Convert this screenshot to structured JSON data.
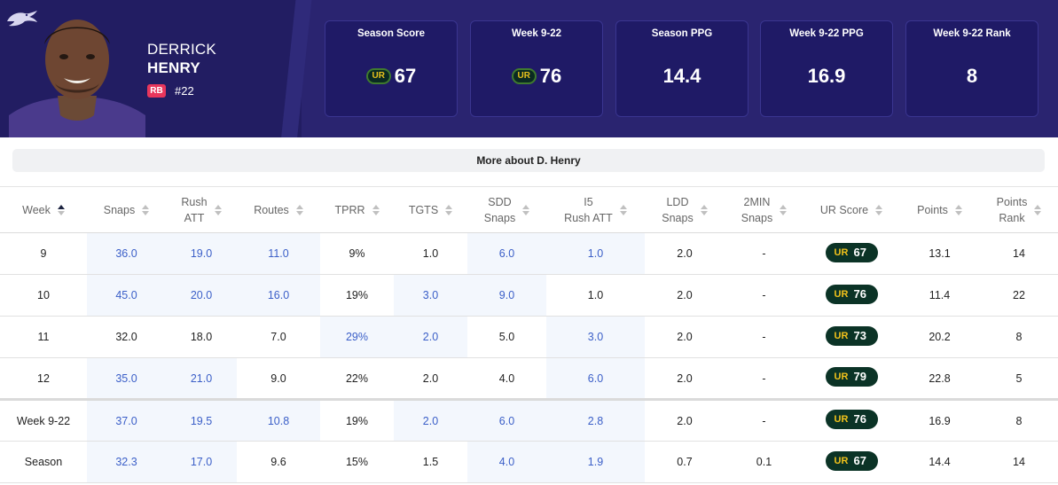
{
  "player": {
    "first_name": "DERRICK",
    "last_name": "HENRY",
    "position": "RB",
    "jersey": "#22"
  },
  "summary_cards": [
    {
      "label": "Season Score",
      "value": "67",
      "badge": true,
      "badge_text": "UR"
    },
    {
      "label": "Week 9-22",
      "value": "76",
      "badge": true,
      "badge_text": "UR"
    },
    {
      "label": "Season PPG",
      "value": "14.4",
      "badge": false
    },
    {
      "label": "Week 9-22 PPG",
      "value": "16.9",
      "badge": false
    },
    {
      "label": "Week 9-22 Rank",
      "value": "8",
      "badge": false
    }
  ],
  "more_about_label": "More about D. Henry",
  "table": {
    "headers": [
      {
        "line1": "Week",
        "line2": "",
        "active_sort": true
      },
      {
        "line1": "Snaps",
        "line2": ""
      },
      {
        "line1": "Rush",
        "line2": "ATT"
      },
      {
        "line1": "Routes",
        "line2": ""
      },
      {
        "line1": "TPRR",
        "line2": ""
      },
      {
        "line1": "TGTS",
        "line2": ""
      },
      {
        "line1": "SDD",
        "line2": "Snaps"
      },
      {
        "line1": "I5",
        "line2": "Rush ATT"
      },
      {
        "line1": "LDD",
        "line2": "Snaps"
      },
      {
        "line1": "2MIN",
        "line2": "Snaps"
      },
      {
        "line1": "UR Score",
        "line2": ""
      },
      {
        "line1": "Points",
        "line2": ""
      },
      {
        "line1": "Points",
        "line2": "Rank"
      }
    ],
    "badge_mark": "UR",
    "rows": [
      {
        "cells": [
          "9",
          "36.0",
          "19.0",
          "11.0",
          "9%",
          "1.0",
          "6.0",
          "1.0",
          "2.0",
          "-",
          "67",
          "13.1",
          "14"
        ],
        "hl": [
          1,
          2,
          3,
          6,
          7
        ]
      },
      {
        "cells": [
          "10",
          "45.0",
          "20.0",
          "16.0",
          "19%",
          "3.0",
          "9.0",
          "1.0",
          "2.0",
          "-",
          "76",
          "11.4",
          "22"
        ],
        "hl": [
          1,
          2,
          3,
          5,
          6
        ]
      },
      {
        "cells": [
          "11",
          "32.0",
          "18.0",
          "7.0",
          "29%",
          "2.0",
          "5.0",
          "3.0",
          "2.0",
          "-",
          "73",
          "20.2",
          "8"
        ],
        "hl": [
          4,
          5,
          7
        ]
      },
      {
        "cells": [
          "12",
          "35.0",
          "21.0",
          "9.0",
          "22%",
          "2.0",
          "4.0",
          "6.0",
          "2.0",
          "-",
          "79",
          "22.8",
          "5"
        ],
        "hl": [
          1,
          2,
          7
        ]
      },
      {
        "cells": [
          "Week 9-22",
          "37.0",
          "19.5",
          "10.8",
          "19%",
          "2.0",
          "6.0",
          "2.8",
          "2.0",
          "-",
          "76",
          "16.9",
          "8"
        ],
        "hl": [
          1,
          2,
          3,
          5,
          6,
          7
        ],
        "separator": true
      },
      {
        "cells": [
          "Season",
          "32.3",
          "17.0",
          "9.6",
          "15%",
          "1.5",
          "4.0",
          "1.9",
          "0.7",
          "0.1",
          "67",
          "14.4",
          "14"
        ],
        "hl": [
          1,
          2,
          6,
          7
        ]
      }
    ]
  },
  "colors": {
    "header_bg": "#2a2470",
    "card_bg": "#1f1a66",
    "position_badge": "#e8365c",
    "highlight_cell_bg": "#f3f7fd",
    "highlight_text": "#3b5fc8",
    "ur_badge_bg": "#0b3326",
    "ur_mark": "#f2c21b"
  },
  "icons": {
    "team_logo": "ravens-logo-icon",
    "headshot": "player-headshot",
    "sort": "sort-icon"
  }
}
